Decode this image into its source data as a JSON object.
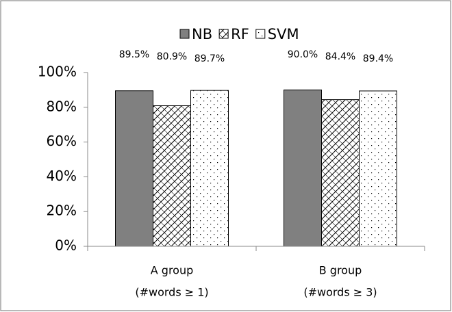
{
  "chart_data": {
    "type": "bar",
    "categories": [
      [
        "A group",
        "(#words ≥ 1)"
      ],
      [
        "B group",
        "(#words ≥ 3)"
      ]
    ],
    "series": [
      {
        "name": "NB",
        "color": "#808080",
        "pattern": "solid",
        "values": [
          89.5,
          90.0
        ],
        "value_labels": [
          "89.5%",
          "90.0%"
        ]
      },
      {
        "name": "RF",
        "color": "#000000",
        "pattern": "hatch",
        "values": [
          80.9,
          84.4
        ],
        "value_labels": [
          "80.9%",
          "84.4%"
        ]
      },
      {
        "name": "SVM",
        "color": "#000000",
        "pattern": "dots",
        "values": [
          89.7,
          89.4
        ],
        "value_labels": [
          "89.7%",
          "89.4%"
        ]
      }
    ],
    "ylim": [
      0,
      100
    ],
    "yticks": [
      {
        "value": 0,
        "label": "0%"
      },
      {
        "value": 20,
        "label": "20%"
      },
      {
        "value": 40,
        "label": "40%"
      },
      {
        "value": 60,
        "label": "60%"
      },
      {
        "value": 80,
        "label": "80%"
      },
      {
        "value": 100,
        "label": "100%"
      }
    ],
    "grid": false,
    "legend": "top"
  }
}
